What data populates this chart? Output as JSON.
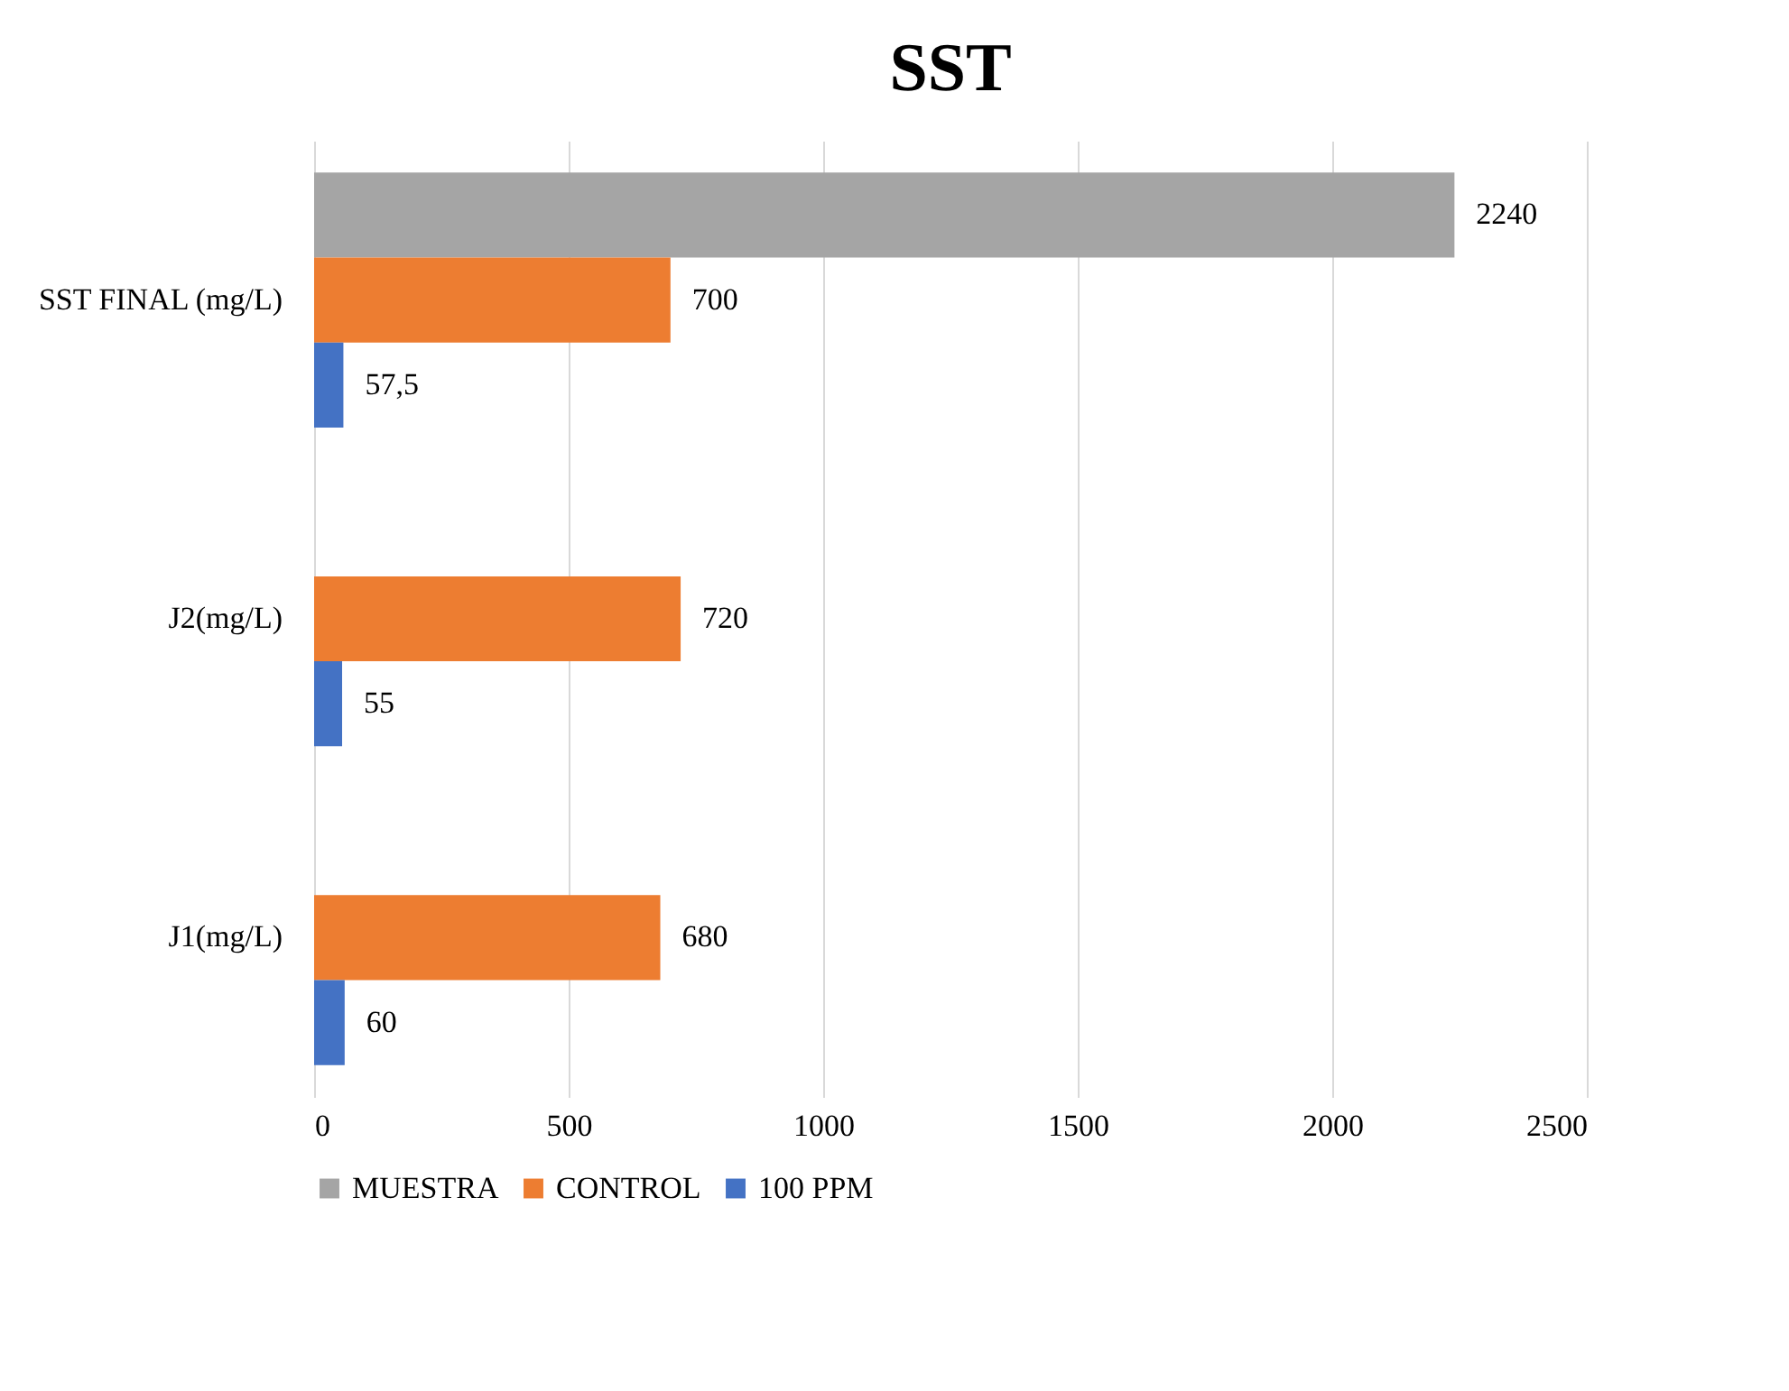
{
  "chart_data": {
    "type": "bar",
    "orientation": "horizontal",
    "title": "SST",
    "categories": [
      "SST FINAL (mg/L)",
      "J2(mg/L)",
      "J1(mg/L)"
    ],
    "series": [
      {
        "name": "MUESTRA",
        "color": "#a5a5a5",
        "values": [
          2240,
          null,
          null
        ],
        "value_labels": [
          "2240",
          null,
          null
        ]
      },
      {
        "name": "CONTROL",
        "color": "#ed7d31",
        "values": [
          700,
          720,
          680
        ],
        "value_labels": [
          "700",
          "720",
          "680"
        ]
      },
      {
        "name": "100 PPM",
        "color": "#4472c4",
        "values": [
          57.5,
          55,
          60
        ],
        "value_labels": [
          "57,5",
          "55",
          "60"
        ]
      }
    ],
    "xlim": [
      0,
      2500
    ],
    "xticks": [
      0,
      500,
      1000,
      1500,
      2000,
      2500
    ],
    "grid": "x",
    "legend": "bottom"
  }
}
